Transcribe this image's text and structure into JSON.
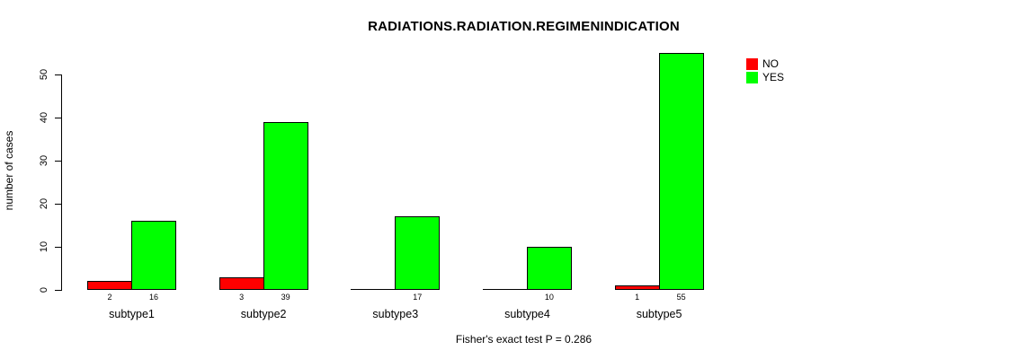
{
  "chart_data": {
    "type": "bar",
    "title": "RADIATIONS.RADIATION.REGIMENINDICATION",
    "ylabel": "number of cases",
    "xlabel": "",
    "categories": [
      "subtype1",
      "subtype2",
      "subtype3",
      "subtype4",
      "subtype5"
    ],
    "series": [
      {
        "name": "NO",
        "color": "#FF0000",
        "values": [
          2,
          3,
          0,
          0,
          1
        ]
      },
      {
        "name": "YES",
        "color": "#00FF00",
        "values": [
          16,
          39,
          17,
          10,
          55
        ]
      }
    ],
    "bar_value_labels": [
      [
        "2",
        "3",
        "",
        "",
        "1"
      ],
      [
        "16",
        "39",
        "17",
        "10",
        "55"
      ]
    ],
    "yticks": [
      0,
      10,
      20,
      30,
      40,
      50
    ],
    "ylim": [
      0,
      50
    ],
    "grid": false,
    "legend_position": "top-right",
    "annotation": "Fisher's exact test P = 0.286",
    "bar_outline_color": "#000000",
    "background_color": "#FFFFFF"
  }
}
